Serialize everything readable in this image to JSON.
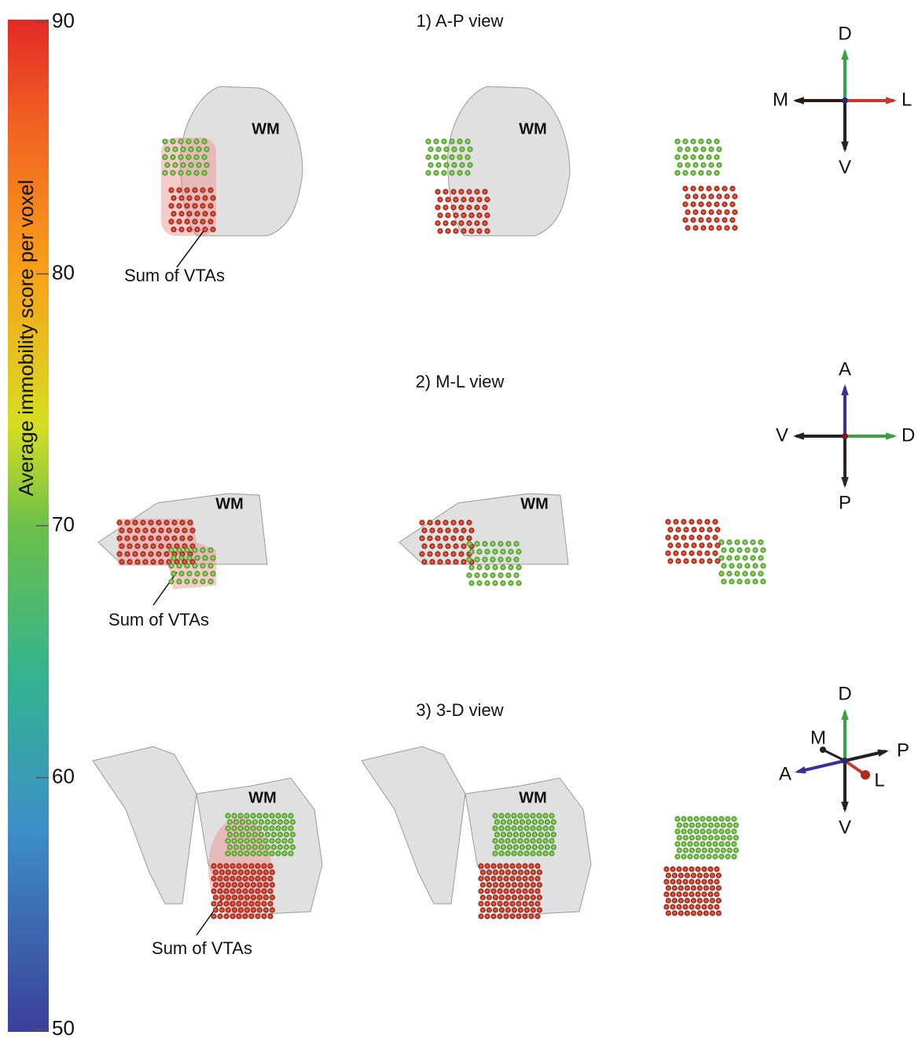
{
  "colorbar": {
    "label": "Average immobility score per voxel",
    "lim": [
      50,
      90
    ],
    "ticks": [
      50,
      60,
      70,
      80,
      90
    ]
  },
  "wm_label": "WM",
  "panels": [
    {
      "title": "1) A-P view",
      "annotation": "Sum of VTAs",
      "orientation": {
        "up": "D",
        "down": "V",
        "left": "M",
        "right": "L"
      }
    },
    {
      "title": "2) M-L view",
      "annotation": "Sum of VTAs",
      "orientation": {
        "up": "A",
        "down": "P",
        "left": "V",
        "right": "D"
      }
    },
    {
      "title": "3) 3-D view",
      "annotation": "Sum of VTAs",
      "orientation": {
        "up": "D",
        "down": "V",
        "left": "A",
        "right": "P",
        "back": "M",
        "front": "L"
      }
    }
  ]
}
